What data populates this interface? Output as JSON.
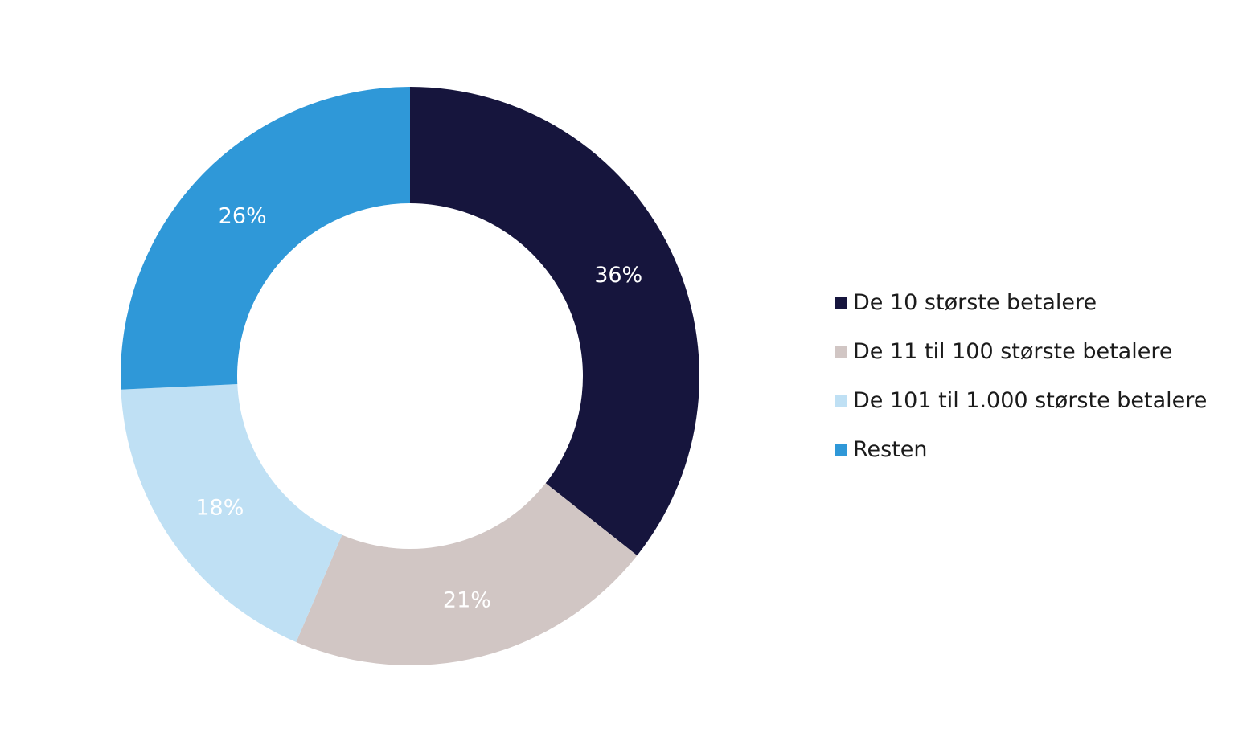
{
  "chart_data": {
    "type": "pie",
    "variant": "donut",
    "categories": [
      "De 10 største betalere",
      "De 11 til 100 største betalere",
      "De 101 til 1.000 største betalere",
      "Resten"
    ],
    "values": [
      36,
      21,
      18,
      26
    ],
    "data_labels": [
      "36%",
      "21%",
      "18%",
      "26%"
    ],
    "colors": [
      "#16153d",
      "#d1c6c4",
      "#bfe0f4",
      "#2f98d8"
    ],
    "legend_placement": "right",
    "label_color": "#ffffff"
  }
}
